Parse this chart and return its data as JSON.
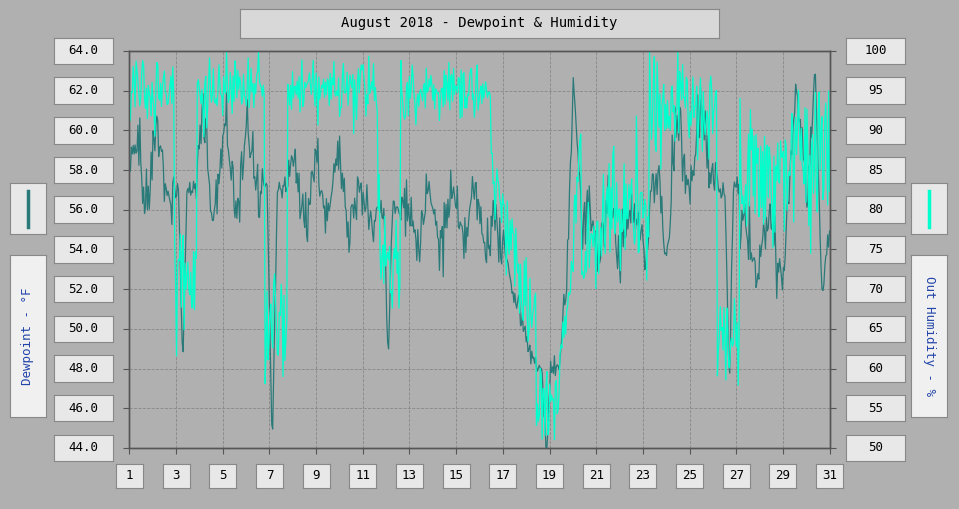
{
  "title": "August 2018 - Dewpoint & Humidity",
  "ylabel_left": "Dewpoint - °F",
  "ylabel_right": "Out Humidity - %",
  "ylim_left": [
    44.0,
    64.0
  ],
  "ylim_right": [
    50,
    100
  ],
  "yticks_left": [
    44.0,
    46.0,
    48.0,
    50.0,
    52.0,
    54.0,
    56.0,
    58.0,
    60.0,
    62.0,
    64.0
  ],
  "yticks_right": [
    50,
    55,
    60,
    65,
    70,
    75,
    80,
    85,
    90,
    95,
    100
  ],
  "ytick_labels_left": [
    "44.0",
    "46.0",
    "48.0",
    "50.0",
    "52.0",
    "54.0",
    "56.0",
    "58.0",
    "60.0",
    "62.0",
    "64.0"
  ],
  "ytick_labels_right": [
    "50",
    "55",
    "60",
    "65",
    "70",
    "75",
    "80",
    "85",
    "90",
    "95",
    "100"
  ],
  "xlim": [
    1,
    31
  ],
  "xticks": [
    1,
    3,
    5,
    7,
    9,
    11,
    13,
    15,
    17,
    19,
    21,
    23,
    25,
    27,
    29,
    31
  ],
  "bg_color": "#b0b0b0",
  "plot_bg_color": "#b0b0b0",
  "grid_color": "#888888",
  "dewpoint_color": "#2a7a7a",
  "humidity_color": "#00ffcc",
  "tickbox_color": "#e8e8e8",
  "tickbox_edge": "#888888",
  "label_box_color": "#f0f0f0",
  "title_box_color": "#d8d8d8",
  "title_box_edge": "#888888",
  "font_size_tick": 9,
  "font_size_label": 9,
  "font_size_title": 10
}
